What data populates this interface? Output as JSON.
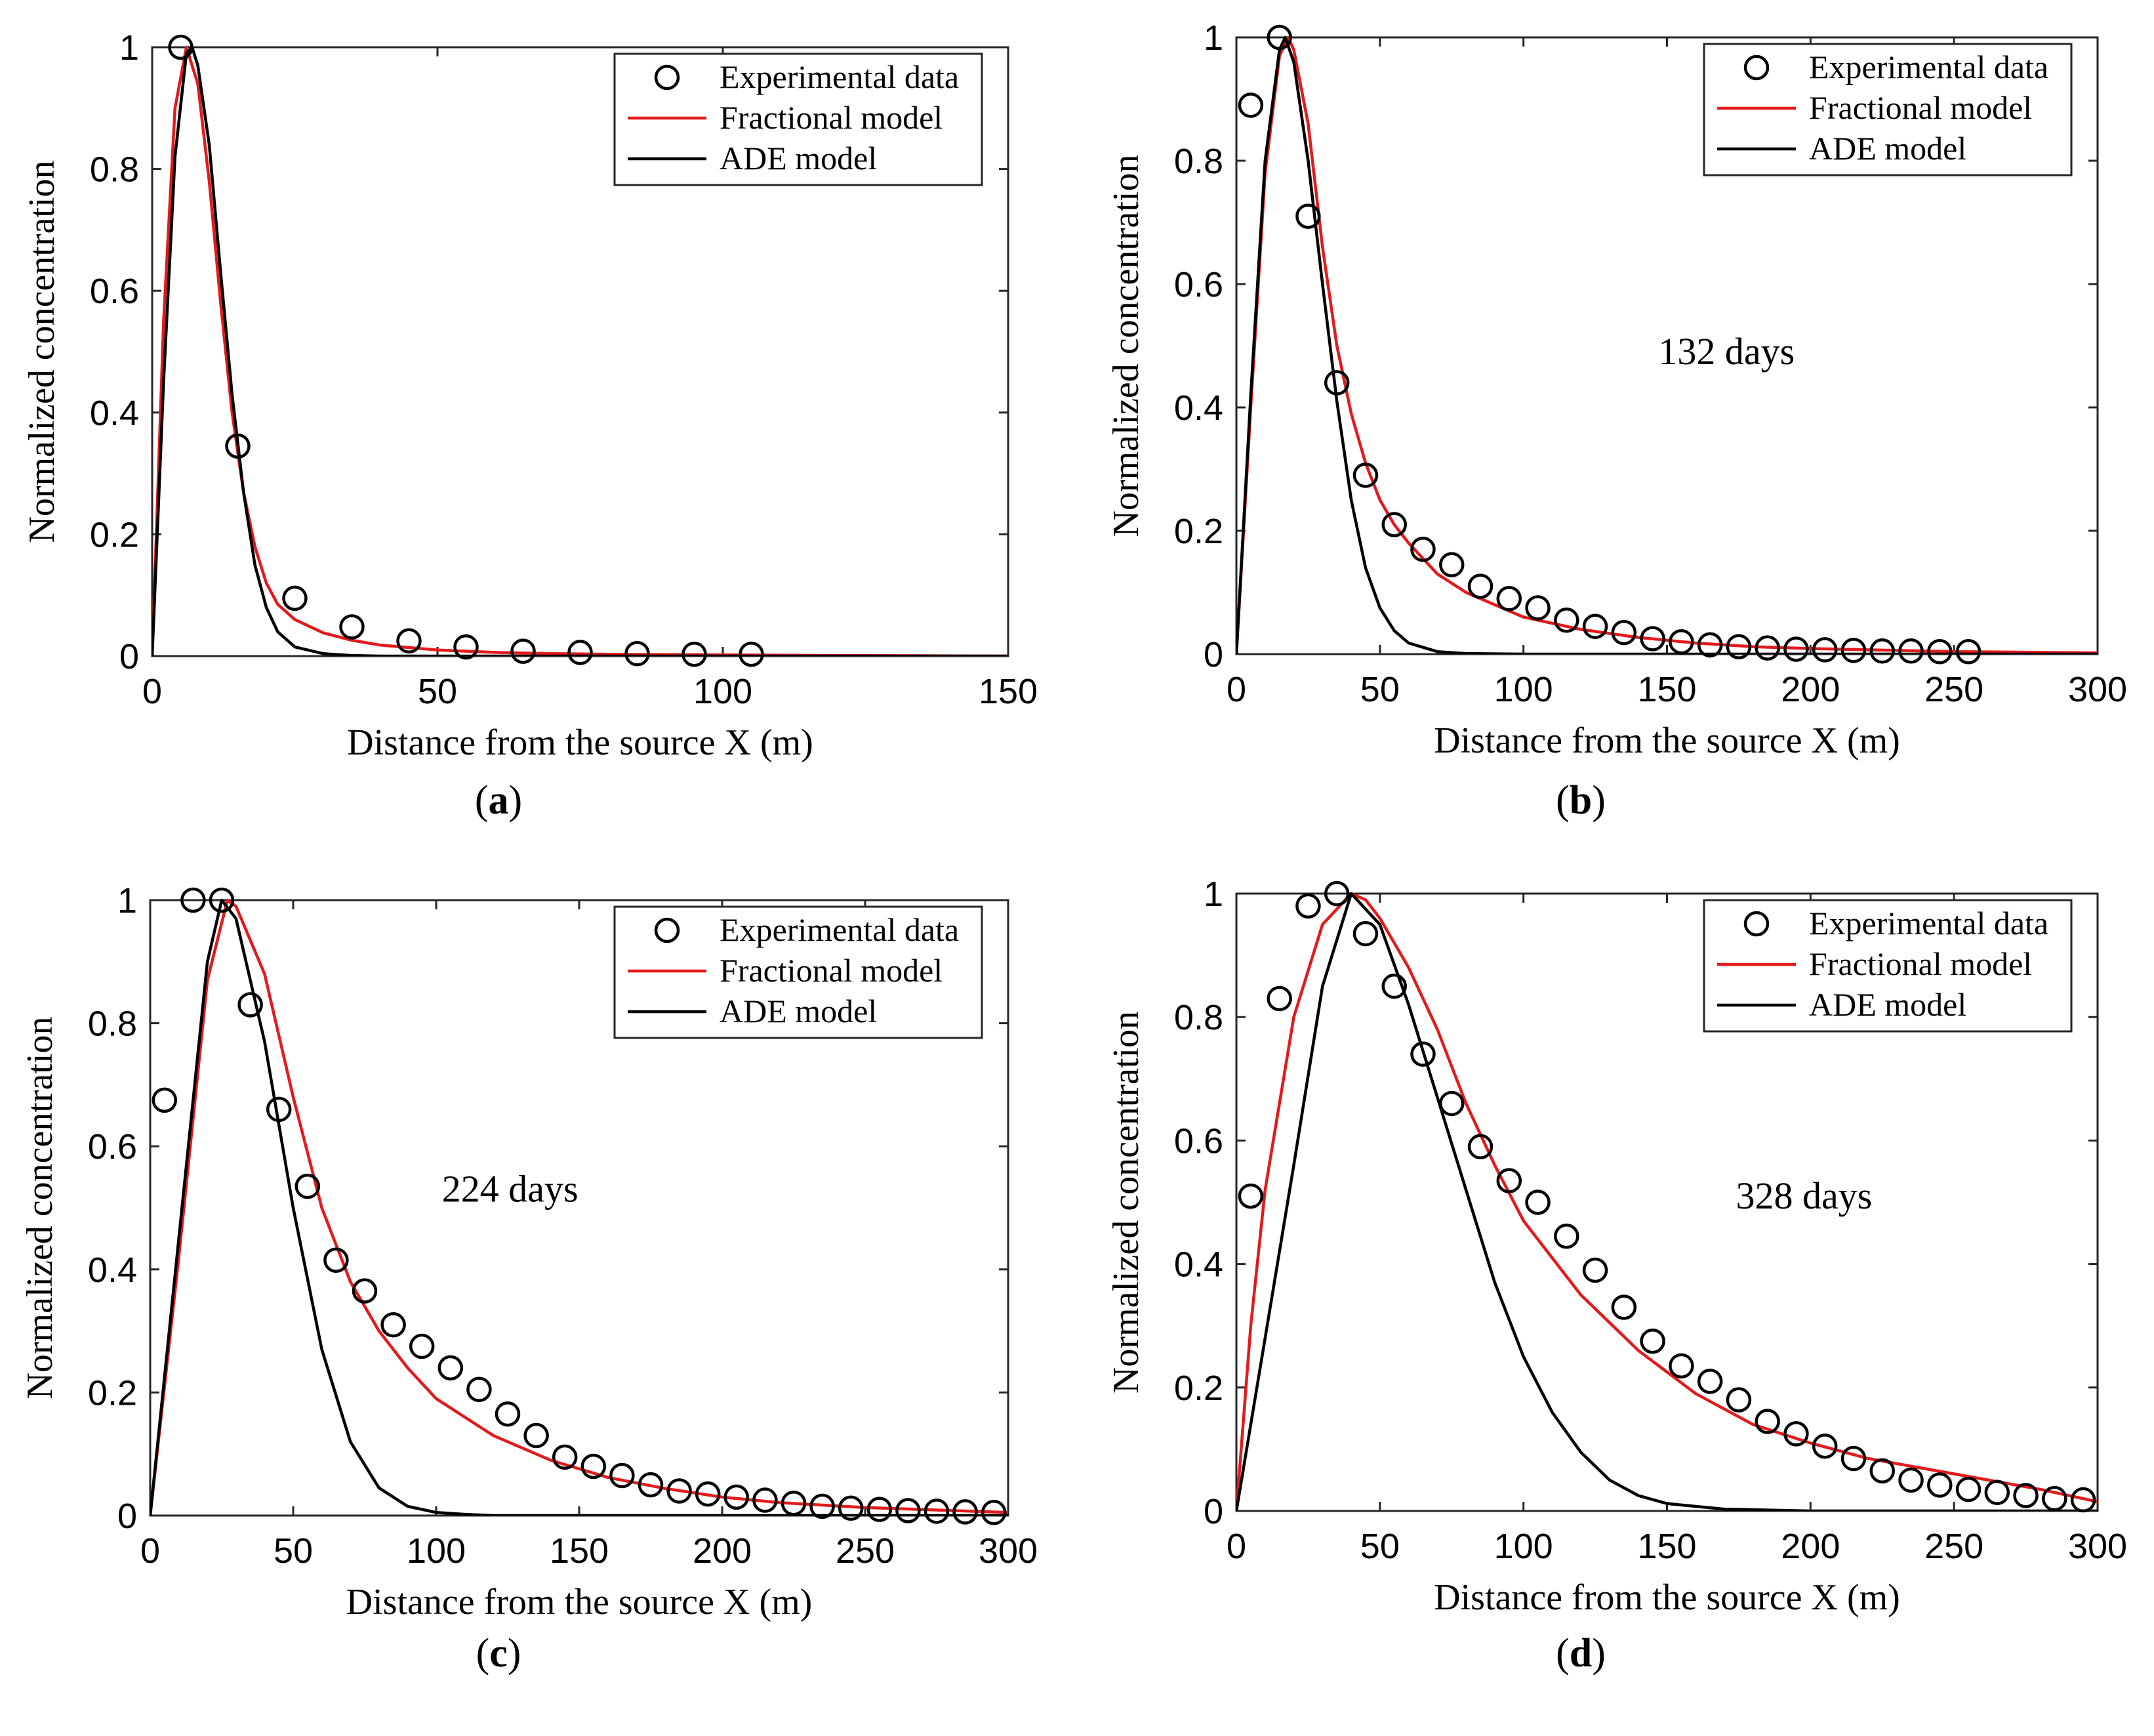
{
  "chart_data": [
    {
      "type": "line",
      "panel_label": "a",
      "annotation": "",
      "xlabel": "Distance from the source X (m)",
      "ylabel": "Normalized concentration",
      "xlim": [
        0,
        150
      ],
      "ylim": [
        0,
        1
      ],
      "xticks": [
        0,
        50,
        100,
        150
      ],
      "yticks": [
        0,
        0.2,
        0.4,
        0.6,
        0.8,
        1
      ],
      "legend_position": "top-right",
      "series": [
        {
          "name": "Experimental data",
          "kind": "scatter",
          "color": "#000000",
          "x": [
            5,
            15,
            25,
            35,
            45,
            55,
            65,
            75,
            85,
            95,
            105
          ],
          "y": [
            1.0,
            0.345,
            0.095,
            0.048,
            0.025,
            0.015,
            0.008,
            0.006,
            0.004,
            0.003,
            0.003
          ]
        },
        {
          "name": "Fractional model",
          "kind": "line",
          "color": "#e31a1c",
          "x": [
            0,
            2,
            4,
            6,
            8,
            10,
            12,
            14,
            16,
            18,
            20,
            22,
            25,
            30,
            35,
            40,
            50,
            60,
            70,
            80,
            100,
            120,
            150
          ],
          "y": [
            0.0,
            0.55,
            0.9,
            1.0,
            0.94,
            0.78,
            0.58,
            0.4,
            0.27,
            0.18,
            0.12,
            0.085,
            0.06,
            0.038,
            0.026,
            0.018,
            0.01,
            0.006,
            0.004,
            0.003,
            0.002,
            0.001,
            0.0
          ]
        },
        {
          "name": "ADE model",
          "kind": "line",
          "color": "#000000",
          "x": [
            0,
            2,
            4,
            6,
            7,
            8,
            10,
            12,
            14,
            16,
            18,
            20,
            22,
            25,
            30,
            35,
            40,
            50,
            150
          ],
          "y": [
            0.0,
            0.45,
            0.82,
            0.99,
            1.0,
            0.97,
            0.84,
            0.63,
            0.43,
            0.27,
            0.15,
            0.08,
            0.04,
            0.015,
            0.004,
            0.001,
            0.0,
            0.0,
            0.0
          ]
        }
      ]
    },
    {
      "type": "line",
      "panel_label": "b",
      "annotation": "132 days",
      "xlabel": "Distance from the source X (m)",
      "ylabel": "Normalized concentration",
      "xlim": [
        0,
        300
      ],
      "ylim": [
        0,
        1
      ],
      "xticks": [
        0,
        50,
        100,
        150,
        200,
        250,
        300
      ],
      "yticks": [
        0,
        0.2,
        0.4,
        0.6,
        0.8,
        1
      ],
      "legend_position": "top-right",
      "series": [
        {
          "name": "Experimental data",
          "kind": "scatter",
          "color": "#000000",
          "x": [
            5,
            15,
            25,
            35,
            45,
            55,
            65,
            75,
            85,
            95,
            105,
            115,
            125,
            135,
            145,
            155,
            165,
            175,
            185,
            195,
            205,
            215,
            225,
            235,
            245,
            255
          ],
          "y": [
            0.89,
            1.0,
            0.71,
            0.44,
            0.29,
            0.21,
            0.17,
            0.145,
            0.11,
            0.09,
            0.075,
            0.055,
            0.045,
            0.035,
            0.025,
            0.02,
            0.015,
            0.012,
            0.01,
            0.008,
            0.007,
            0.006,
            0.005,
            0.005,
            0.004,
            0.004
          ]
        },
        {
          "name": "Fractional model",
          "kind": "line",
          "color": "#e31a1c",
          "x": [
            0,
            5,
            10,
            15,
            18,
            20,
            25,
            30,
            35,
            40,
            45,
            50,
            55,
            60,
            70,
            80,
            90,
            100,
            120,
            140,
            160,
            180,
            200,
            250,
            300
          ],
          "y": [
            0.0,
            0.4,
            0.78,
            0.97,
            1.0,
            0.98,
            0.86,
            0.66,
            0.5,
            0.39,
            0.31,
            0.25,
            0.21,
            0.18,
            0.13,
            0.1,
            0.08,
            0.06,
            0.04,
            0.027,
            0.018,
            0.012,
            0.009,
            0.004,
            0.002
          ]
        },
        {
          "name": "ADE model",
          "kind": "line",
          "color": "#000000",
          "x": [
            0,
            5,
            10,
            15,
            17,
            20,
            25,
            30,
            35,
            40,
            45,
            50,
            55,
            60,
            70,
            80,
            100,
            300
          ],
          "y": [
            0.0,
            0.42,
            0.8,
            0.98,
            1.0,
            0.96,
            0.8,
            0.6,
            0.41,
            0.25,
            0.14,
            0.075,
            0.038,
            0.018,
            0.004,
            0.001,
            0.0,
            0.0
          ]
        }
      ]
    },
    {
      "type": "line",
      "panel_label": "c",
      "annotation": "224 days",
      "xlabel": "Distance from the source X (m)",
      "ylabel": "Normalized concentration",
      "xlim": [
        0,
        300
      ],
      "ylim": [
        0,
        1
      ],
      "xticks": [
        0,
        50,
        100,
        150,
        200,
        250,
        300
      ],
      "yticks": [
        0,
        0.2,
        0.4,
        0.6,
        0.8,
        1
      ],
      "legend_position": "top-right",
      "series": [
        {
          "name": "Experimental data",
          "kind": "scatter",
          "color": "#000000",
          "x": [
            5,
            15,
            25,
            35,
            45,
            55,
            65,
            75,
            85,
            95,
            105,
            115,
            125,
            135,
            145,
            155,
            165,
            175,
            185,
            195,
            205,
            215,
            225,
            235,
            245,
            255,
            265,
            275,
            285,
            295
          ],
          "y": [
            0.675,
            1.0,
            1.0,
            0.83,
            0.66,
            0.535,
            0.415,
            0.365,
            0.31,
            0.275,
            0.24,
            0.205,
            0.165,
            0.13,
            0.095,
            0.08,
            0.065,
            0.05,
            0.04,
            0.035,
            0.03,
            0.025,
            0.02,
            0.015,
            0.012,
            0.01,
            0.008,
            0.007,
            0.006,
            0.005
          ]
        },
        {
          "name": "Fractional model",
          "kind": "line",
          "color": "#e31a1c",
          "x": [
            0,
            10,
            20,
            27,
            30,
            40,
            50,
            60,
            70,
            80,
            90,
            100,
            120,
            140,
            160,
            180,
            200,
            220,
            250,
            300
          ],
          "y": [
            0.0,
            0.42,
            0.87,
            1.0,
            0.99,
            0.88,
            0.68,
            0.5,
            0.38,
            0.3,
            0.24,
            0.19,
            0.13,
            0.09,
            0.062,
            0.044,
            0.03,
            0.021,
            0.013,
            0.005
          ]
        },
        {
          "name": "ADE model",
          "kind": "line",
          "color": "#000000",
          "x": [
            0,
            10,
            20,
            25,
            30,
            40,
            50,
            60,
            70,
            80,
            90,
            100,
            110,
            120,
            140,
            300
          ],
          "y": [
            0.0,
            0.45,
            0.9,
            1.0,
            0.97,
            0.77,
            0.5,
            0.27,
            0.12,
            0.045,
            0.015,
            0.005,
            0.002,
            0.0,
            0.0,
            0.0
          ]
        }
      ]
    },
    {
      "type": "line",
      "panel_label": "d",
      "annotation": "328 days",
      "xlabel": "Distance from the source X (m)",
      "ylabel": "Normalized concentration",
      "xlim": [
        0,
        300
      ],
      "ylim": [
        0,
        1
      ],
      "xticks": [
        0,
        50,
        100,
        150,
        200,
        250,
        300
      ],
      "yticks": [
        0,
        0.2,
        0.4,
        0.6,
        0.8,
        1
      ],
      "legend_position": "top-right",
      "series": [
        {
          "name": "Experimental data",
          "kind": "scatter",
          "color": "#000000",
          "x": [
            5,
            15,
            25,
            35,
            45,
            55,
            65,
            75,
            85,
            95,
            105,
            115,
            125,
            135,
            145,
            155,
            165,
            175,
            185,
            195,
            205,
            215,
            225,
            235,
            245,
            255,
            265,
            275,
            285,
            295
          ],
          "y": [
            0.51,
            0.83,
            0.98,
            1.0,
            0.935,
            0.85,
            0.74,
            0.66,
            0.59,
            0.535,
            0.5,
            0.445,
            0.39,
            0.33,
            0.275,
            0.235,
            0.21,
            0.18,
            0.145,
            0.125,
            0.105,
            0.085,
            0.065,
            0.05,
            0.042,
            0.035,
            0.03,
            0.025,
            0.02,
            0.018
          ]
        },
        {
          "name": "Fractional model",
          "kind": "line",
          "color": "#e31a1c",
          "x": [
            0,
            5,
            10,
            20,
            30,
            40,
            45,
            50,
            60,
            70,
            80,
            90,
            100,
            120,
            140,
            160,
            180,
            200,
            220,
            250,
            280,
            300
          ],
          "y": [
            0.0,
            0.3,
            0.52,
            0.8,
            0.95,
            1.0,
            0.99,
            0.96,
            0.88,
            0.78,
            0.66,
            0.56,
            0.47,
            0.35,
            0.26,
            0.19,
            0.14,
            0.11,
            0.085,
            0.06,
            0.035,
            0.015
          ]
        },
        {
          "name": "ADE model",
          "kind": "line",
          "color": "#000000",
          "x": [
            0,
            10,
            20,
            30,
            40,
            50,
            60,
            70,
            80,
            90,
            100,
            110,
            120,
            130,
            140,
            150,
            170,
            200,
            300
          ],
          "y": [
            0.0,
            0.28,
            0.56,
            0.85,
            1.0,
            0.95,
            0.82,
            0.67,
            0.52,
            0.37,
            0.25,
            0.16,
            0.095,
            0.05,
            0.025,
            0.012,
            0.003,
            0.0,
            0.0
          ]
        }
      ]
    }
  ]
}
